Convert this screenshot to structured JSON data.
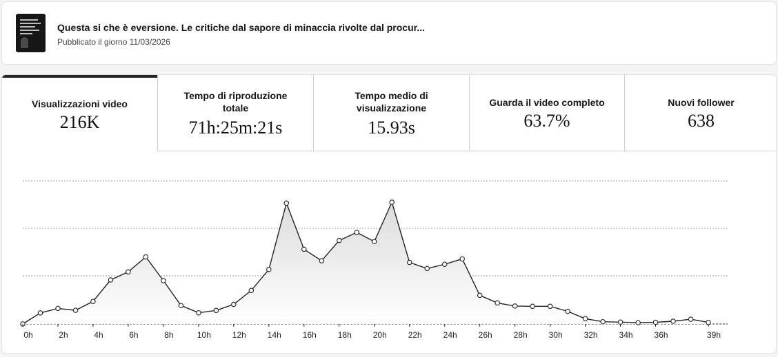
{
  "post": {
    "title": "Questa si che è eversione. Le critiche dal sapore di minaccia rivolte dal procur...",
    "published": "Pubblicato il giorno 11/03/2026"
  },
  "tabs": [
    {
      "label": "Visualizzazioni video",
      "value": "216K",
      "active": true
    },
    {
      "label": "Tempo di riproduzione totale",
      "value": "71h:25m:21s",
      "active": false
    },
    {
      "label": "Tempo medio di visualizzazione",
      "value": "15.93s",
      "active": false
    },
    {
      "label": "Guarda il video completo",
      "value": "63.7%",
      "active": false
    },
    {
      "label": "Nuovi follower",
      "value": "638",
      "active": false
    }
  ],
  "chart_data": {
    "type": "area",
    "x_tick_labels": [
      "0h",
      "2h",
      "4h",
      "6h",
      "8h",
      "10h",
      "12h",
      "14h",
      "16h",
      "18h",
      "20h",
      "22h",
      "24h",
      "26h",
      "28h",
      "30h",
      "32h",
      "34h",
      "36h",
      "39h"
    ],
    "x": [
      0,
      1,
      2,
      3,
      4,
      5,
      6,
      7,
      8,
      9,
      10,
      11,
      12,
      13,
      14,
      15,
      16,
      17,
      18,
      19,
      20,
      21,
      22,
      23,
      24,
      25,
      26,
      27,
      28,
      29,
      30,
      31,
      32,
      33,
      34,
      35,
      36,
      37,
      38,
      39
    ],
    "values": [
      0,
      0.084,
      0.118,
      0.104,
      0.171,
      0.334,
      0.395,
      0.509,
      0.329,
      0.14,
      0.085,
      0.103,
      0.149,
      0.254,
      0.414,
      0.917,
      0.567,
      0.48,
      0.634,
      0.695,
      0.626,
      0.924,
      0.467,
      0.421,
      0.453,
      0.494,
      0.217,
      0.16,
      0.136,
      0.134,
      0.134,
      0.096,
      0.04,
      0.017,
      0.014,
      0.01,
      0.013,
      0.021,
      0.036,
      0.012
    ],
    "y_ticks_labeled": false,
    "grid": true,
    "colors": {
      "line": "#222222",
      "fill_top": "#dcdcdc",
      "fill_bottom": "#ffffff"
    }
  }
}
